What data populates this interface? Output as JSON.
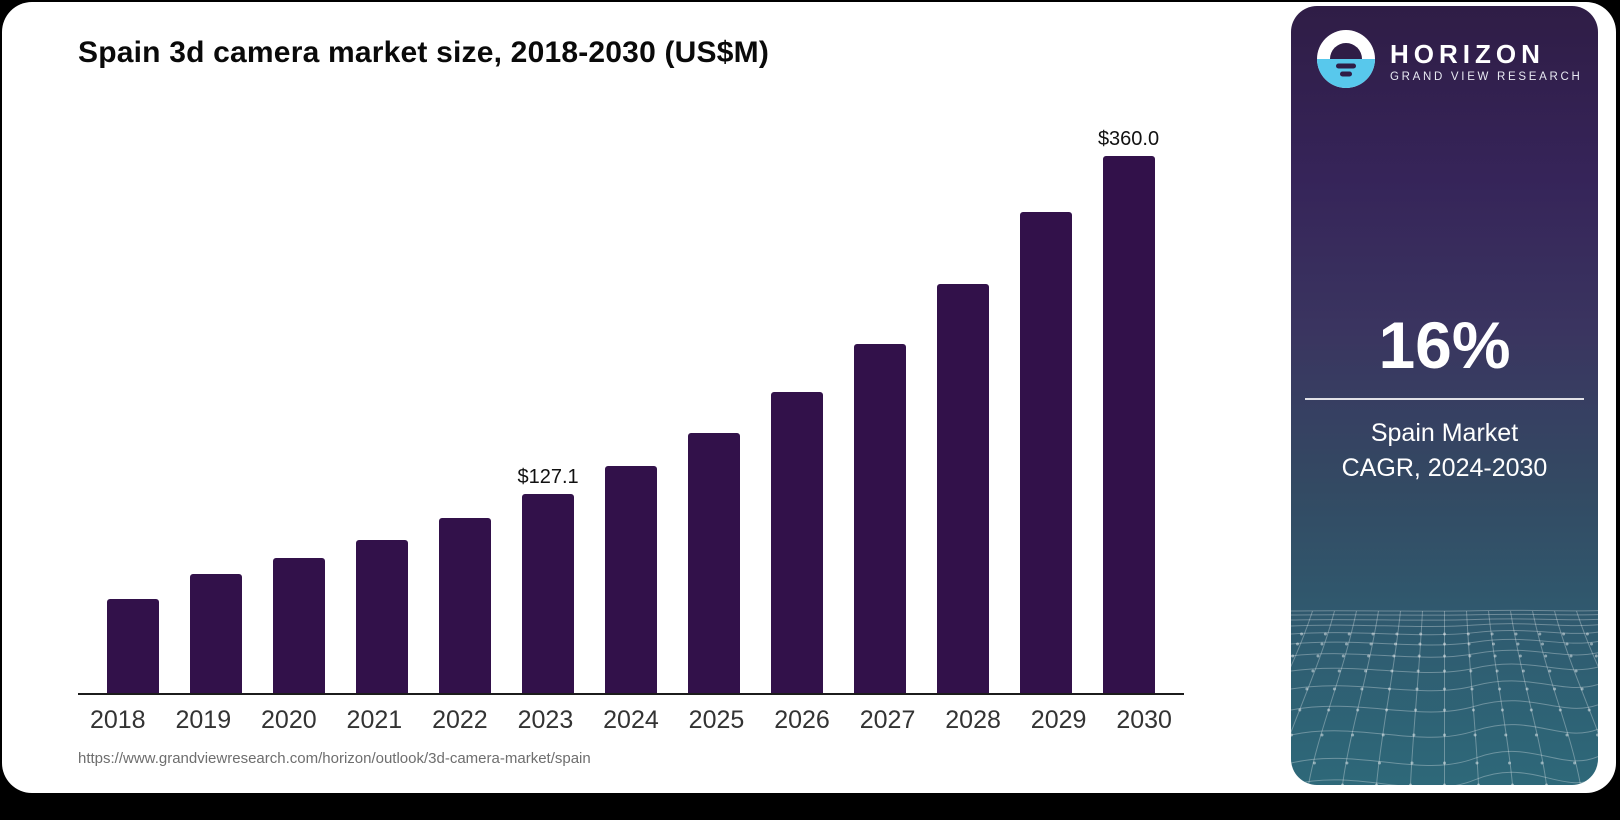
{
  "page": {
    "background": "#000000",
    "card_background": "#ffffff"
  },
  "chart": {
    "title": "Spain 3d camera market size, 2018-2030 (US$M)",
    "source_url": "https://www.grandviewresearch.com/horizon/outlook/3d-camera-market/spain"
  },
  "chart_data": {
    "type": "bar",
    "title": "Spain 3d camera market size, 2018-2030 (US$M)",
    "categories": [
      "2018",
      "2019",
      "2020",
      "2021",
      "2022",
      "2023",
      "2024",
      "2025",
      "2026",
      "2027",
      "2028",
      "2029",
      "2030"
    ],
    "values": [
      60,
      76,
      86,
      98,
      112,
      127.1,
      145,
      166,
      192,
      223,
      261,
      307,
      360
    ],
    "data_labels": [
      "",
      "",
      "",
      "",
      "",
      "$127.1",
      "",
      "",
      "",
      "",
      "",
      "",
      "$360.0"
    ],
    "unit": "US$M",
    "bar_color": "#32114a",
    "ylim": [
      0,
      360
    ],
    "grid": false,
    "legend": false,
    "axis_text_color": "#333333"
  },
  "sidebar": {
    "brand": {
      "name": "HORIZON",
      "subtitle": "GRAND VIEW RESEARCH",
      "logo_blue": "#58c8ec",
      "logo_dark": "#2f1d46"
    },
    "stat": {
      "value": "16%",
      "caption_line1": "Spain Market",
      "caption_line2": "CAGR, 2024-2030"
    }
  }
}
